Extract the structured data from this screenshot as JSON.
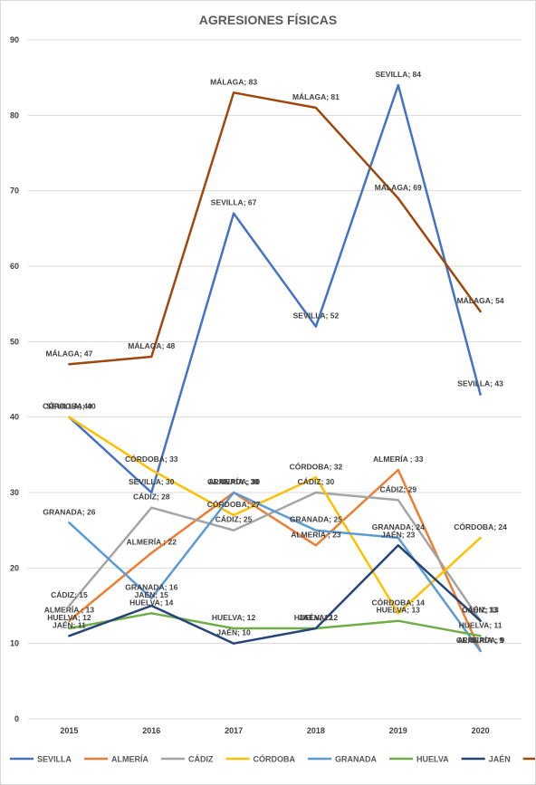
{
  "chart_data": {
    "type": "line",
    "title": "AGRESIONES FÍSICAS",
    "xlabel": "",
    "ylabel": "",
    "categories": [
      "2015",
      "2016",
      "2017",
      "2018",
      "2019",
      "2020"
    ],
    "ylim": [
      0,
      90
    ],
    "yticks": [
      "0",
      "10",
      "20",
      "30",
      "40",
      "50",
      "60",
      "70",
      "80",
      "90"
    ],
    "grid": true,
    "legend_position": "bottom",
    "series": [
      {
        "name": "SEVILLA",
        "color": "#4472c4",
        "values": [
          40,
          30,
          67,
          52,
          84,
          43
        ],
        "labels": [
          "SEVILLA; 40",
          "SEVILLA; 30",
          "SEVILLA; 67",
          "SEVILLA; 52",
          "SEVILLA; 84",
          "SEVILLA; 43"
        ]
      },
      {
        "name": "ALMERÍA",
        "color": "#ed7d31",
        "values": [
          13,
          22,
          30,
          23,
          33,
          9
        ],
        "labels": [
          "ALMERÍA ; 13",
          "ALMERÍA ; 22",
          "ALMERÍA ; 30",
          "ALMERÍA ; 23",
          "ALMERÍA ; 33",
          "ALMERÍA ; 9"
        ]
      },
      {
        "name": "CÁDIZ",
        "color": "#a5a5a5",
        "values": [
          15,
          28,
          25,
          30,
          29,
          13
        ],
        "labels": [
          "CÁDIZ; 15",
          "CÁDIZ; 28",
          "CÁDIZ; 25",
          "CÁDIZ; 30",
          "CÁDIZ; 29",
          "CÁDIZ; 13"
        ]
      },
      {
        "name": "CÓRDOBA",
        "color": "#ffc000",
        "values": [
          40,
          33,
          27,
          32,
          14,
          24
        ],
        "labels": [
          "CÓRDOBA; 40",
          "CÓRDOBA; 33",
          "CÓRDOBA; 27",
          "CÓRDOBA; 32",
          "CÓRDOBA; 14",
          "CÓRDOBA; 24"
        ]
      },
      {
        "name": "GRANADA",
        "color": "#5b9bd5",
        "values": [
          26,
          16,
          30,
          25,
          24,
          9
        ],
        "labels": [
          "GRANADA; 26",
          "GRANADA; 16",
          "GRANADA; 30",
          "GRANADA; 25",
          "GRANADA; 24",
          "GRANADA; 9"
        ]
      },
      {
        "name": "HUELVA",
        "color": "#70ad47",
        "values": [
          12,
          14,
          12,
          12,
          13,
          11
        ],
        "labels": [
          "HUELVA; 12",
          "HUELVA; 14",
          "HUELVA; 12",
          "HUELVA; 12",
          "HUELVA; 13",
          "HUELVA; 11"
        ]
      },
      {
        "name": "JAÉN",
        "color": "#264478",
        "values": [
          11,
          15,
          10,
          12,
          23,
          13
        ],
        "labels": [
          "JAÉN; 11",
          "JAÉN; 15",
          "JAÉN; 10",
          "JAÉN; 12",
          "JAÉN; 23",
          "JAÉN; 13"
        ]
      },
      {
        "name": "MÁLAGA",
        "color": "#9e480e",
        "values": [
          47,
          48,
          83,
          81,
          69,
          54
        ],
        "labels": [
          "MÁLAGA; 47",
          "MÁLAGA; 48",
          "MÁLAGA; 83",
          "MÁLAGA; 81",
          "MÁLAGA; 69",
          "MÁLAGA; 54"
        ]
      }
    ]
  }
}
